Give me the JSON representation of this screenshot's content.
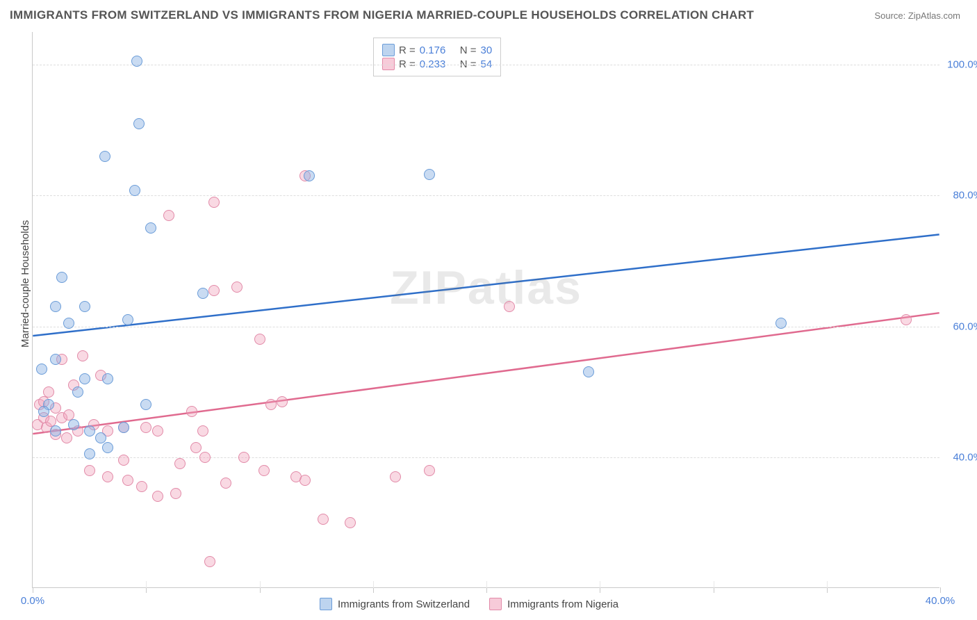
{
  "title": "IMMIGRANTS FROM SWITZERLAND VS IMMIGRANTS FROM NIGERIA MARRIED-COUPLE HOUSEHOLDS CORRELATION CHART",
  "source": "Source: ZipAtlas.com",
  "watermark": "ZIPatlas",
  "ylabel": "Married-couple Households",
  "chart": {
    "type": "scatter",
    "xlim": [
      0,
      40
    ],
    "ylim": [
      20,
      105
    ],
    "x_ticks": [
      0,
      5,
      10,
      15,
      20,
      25,
      30,
      35,
      40
    ],
    "x_tick_labels": {
      "0": "0.0%",
      "40": "40.0%"
    },
    "y_gridlines": [
      40,
      60,
      80,
      100
    ],
    "y_tick_labels": {
      "40": "40.0%",
      "60": "60.0%",
      "80": "80.0%",
      "100": "100.0%"
    },
    "background_color": "#ffffff",
    "grid_color": "#dddddd",
    "axis_color": "#c9c9c9",
    "label_color": "#4a7fd8"
  },
  "series": {
    "switzerland": {
      "label": "Immigrants from Switzerland",
      "color_fill": "rgba(135,176,226,0.45)",
      "color_stroke": "#6a9cd8",
      "trend_color": "#2f6fc9",
      "trend": {
        "x1": 0,
        "y1": 58.5,
        "x2": 40,
        "y2": 74
      },
      "R": "0.176",
      "N": "30",
      "points": [
        [
          4.6,
          100.5
        ],
        [
          4.7,
          91
        ],
        [
          3.2,
          86
        ],
        [
          17.5,
          83.2
        ],
        [
          12.2,
          83
        ],
        [
          4.5,
          80.8
        ],
        [
          5.2,
          75
        ],
        [
          1.3,
          67.5
        ],
        [
          2.3,
          63
        ],
        [
          1,
          63
        ],
        [
          1.6,
          60.5
        ],
        [
          4.2,
          61
        ],
        [
          7.5,
          65
        ],
        [
          33,
          60.5
        ],
        [
          1,
          55
        ],
        [
          0.4,
          53.5
        ],
        [
          2.3,
          52
        ],
        [
          3.3,
          52
        ],
        [
          24.5,
          53
        ],
        [
          0.7,
          48
        ],
        [
          2,
          50
        ],
        [
          2.5,
          44
        ],
        [
          3,
          43
        ],
        [
          4,
          44.5
        ],
        [
          5,
          48
        ],
        [
          2.5,
          40.5
        ],
        [
          3.3,
          41.5
        ],
        [
          1,
          44
        ],
        [
          0.5,
          47
        ],
        [
          1.8,
          45
        ]
      ]
    },
    "nigeria": {
      "label": "Immigrants from Nigeria",
      "color_fill": "rgba(240,160,185,0.40)",
      "color_stroke": "#e28aa8",
      "trend_color": "#e06a8f",
      "trend": {
        "x1": 0,
        "y1": 43.5,
        "x2": 40,
        "y2": 62
      },
      "R": "0.233",
      "N": "54",
      "points": [
        [
          1.3,
          55
        ],
        [
          2.2,
          55.5
        ],
        [
          3,
          52.5
        ],
        [
          1.8,
          51
        ],
        [
          0.7,
          50
        ],
        [
          0.3,
          48
        ],
        [
          0.5,
          48.5
        ],
        [
          1,
          47.5
        ],
        [
          0.2,
          45
        ],
        [
          0.5,
          46
        ],
        [
          0.6,
          44.5
        ],
        [
          0.8,
          45.5
        ],
        [
          1.3,
          46
        ],
        [
          1.6,
          46.5
        ],
        [
          1,
          43.5
        ],
        [
          1.5,
          43
        ],
        [
          2,
          44
        ],
        [
          2.7,
          45
        ],
        [
          3.3,
          44
        ],
        [
          4,
          44.5
        ],
        [
          5,
          44.5
        ],
        [
          5.5,
          44
        ],
        [
          7,
          47
        ],
        [
          7.5,
          44
        ],
        [
          10.5,
          48
        ],
        [
          11,
          48.5
        ],
        [
          12,
          83
        ],
        [
          8,
          79
        ],
        [
          6,
          77
        ],
        [
          8,
          65.5
        ],
        [
          9,
          66
        ],
        [
          10,
          58
        ],
        [
          21,
          63
        ],
        [
          38.5,
          61
        ],
        [
          7.2,
          41.5
        ],
        [
          2.5,
          38
        ],
        [
          3.3,
          37
        ],
        [
          4,
          39.5
        ],
        [
          4.2,
          36.5
        ],
        [
          4.8,
          35.5
        ],
        [
          5.5,
          34
        ],
        [
          6.3,
          34.5
        ],
        [
          6.5,
          39
        ],
        [
          7.6,
          40
        ],
        [
          8.5,
          36
        ],
        [
          9.3,
          40
        ],
        [
          10.2,
          38
        ],
        [
          11.6,
          37
        ],
        [
          12,
          36.5
        ],
        [
          12.8,
          30.5
        ],
        [
          14,
          30
        ],
        [
          16,
          37
        ],
        [
          17.5,
          38
        ],
        [
          7.8,
          24
        ]
      ]
    }
  },
  "legend_top": {
    "rows": [
      {
        "swatch": "blue",
        "r_label": "R =",
        "r_val": "0.176",
        "n_label": "N =",
        "n_val": "30"
      },
      {
        "swatch": "pink",
        "r_label": "R =",
        "r_val": "0.233",
        "n_label": "N =",
        "n_val": "54"
      }
    ]
  }
}
